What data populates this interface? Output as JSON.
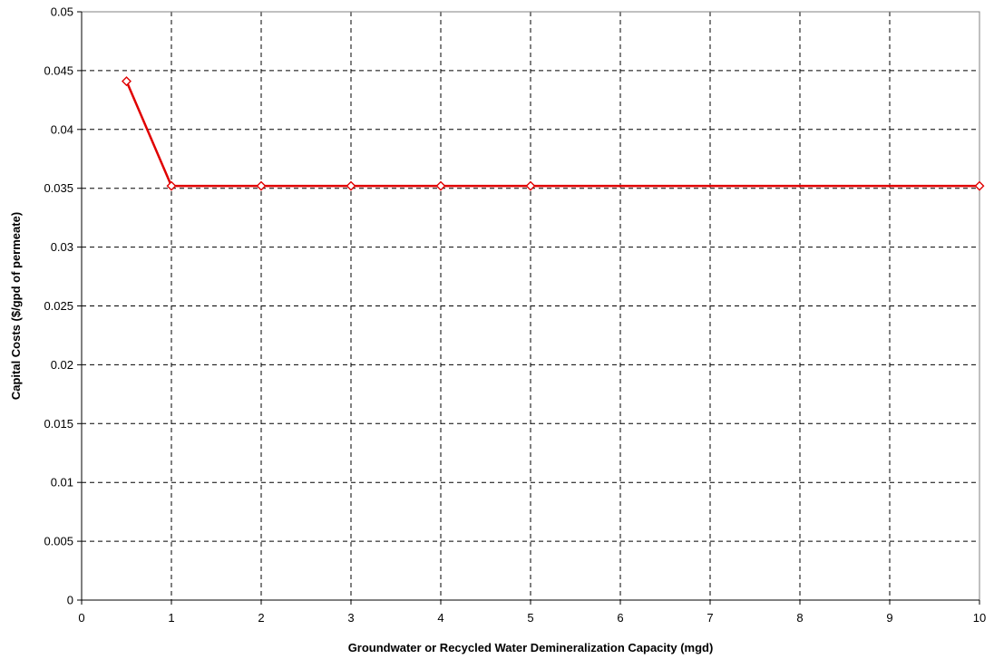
{
  "chart_data": {
    "type": "line",
    "title": "",
    "xlabel": "Groundwater or Recycled Water Demineralization Capacity (mgd)",
    "ylabel": "Capital Costs ($/gpd of permeate)",
    "xlim": [
      0,
      10
    ],
    "ylim": [
      0,
      0.05
    ],
    "x_ticks": [
      0,
      1,
      2,
      3,
      4,
      5,
      6,
      7,
      8,
      9,
      10
    ],
    "x_tick_labels": [
      "0",
      "1",
      "2",
      "3",
      "4",
      "5",
      "6",
      "7",
      "8",
      "9",
      "10"
    ],
    "y_ticks": [
      0,
      0.005,
      0.01,
      0.015,
      0.02,
      0.025,
      0.03,
      0.035,
      0.04,
      0.045,
      0.05
    ],
    "y_tick_labels": [
      "0",
      "0.005",
      "0.01",
      "0.015",
      "0.02",
      "0.025",
      "0.03",
      "0.035",
      "0.04",
      "0.045",
      "0.05"
    ],
    "grid": true,
    "legend": "none",
    "series": [
      {
        "color": "#e00000",
        "marker": "diamond",
        "x": [
          0.5,
          1,
          2,
          3,
          4,
          5,
          10
        ],
        "y": [
          0.0441,
          0.0352,
          0.0352,
          0.0352,
          0.0352,
          0.0352,
          0.0352
        ]
      }
    ]
  }
}
